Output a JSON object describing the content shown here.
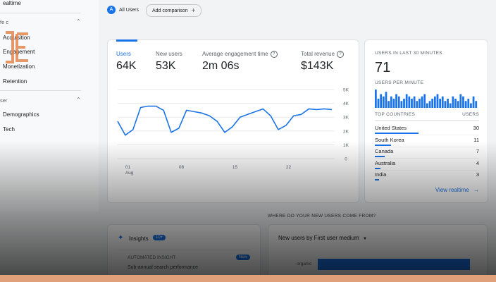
{
  "sidebar": {
    "top_item": "ealtime",
    "section_lifecycle": "fe c",
    "items_lifecycle": [
      "Acquisition",
      "Engagement",
      "Monetization",
      "Retention"
    ],
    "section_user": "ser",
    "items_user": [
      "Demographics",
      "Tech"
    ]
  },
  "header": {
    "all_users_avatar": "A",
    "all_users_label": "All Users",
    "add_comparison_label": "Add comparison"
  },
  "metrics": [
    {
      "label": "Users",
      "value": "64K"
    },
    {
      "label": "New users",
      "value": "53K"
    },
    {
      "label": "Average engagement time",
      "value": "2m 06s"
    },
    {
      "label": "Total revenue",
      "value": "$143K"
    }
  ],
  "chart_data": {
    "type": "line",
    "x": [
      1,
      2,
      3,
      4,
      5,
      6,
      7,
      8,
      9,
      10,
      11,
      12,
      13,
      14,
      15,
      16,
      17,
      18,
      19,
      20,
      21,
      22,
      23,
      24,
      25,
      26,
      27,
      28,
      29
    ],
    "series": [
      {
        "values": [
          2700,
          1700,
          2100,
          3700,
          3800,
          3800,
          3500,
          1900,
          2200,
          3500,
          3400,
          3300,
          3100,
          2700,
          1900,
          2300,
          3000,
          3200,
          3400,
          3600,
          3100,
          2100,
          2400,
          3100,
          3200,
          3600,
          3550,
          3600,
          3550
        ]
      }
    ],
    "x_tick_labels": [
      "01",
      "08",
      "15",
      "22"
    ],
    "x_sublabel": "Aug",
    "y_tick_labels": [
      "5K",
      "4K",
      "3K",
      "2K",
      "1K",
      "0"
    ],
    "ylim": [
      0,
      5000
    ],
    "grid": true
  },
  "realtime": {
    "title": "USERS IN LAST 30 MINUTES",
    "value": "71",
    "per_minute_label": "USERS PER MINUTE",
    "per_minute_values": [
      8,
      4,
      6,
      5,
      7,
      3,
      5,
      4,
      6,
      5,
      3,
      4,
      6,
      5,
      4,
      5,
      3,
      4,
      5,
      6,
      2,
      3,
      4,
      5,
      6,
      4,
      5,
      3,
      4,
      2,
      5,
      4,
      3,
      6,
      5,
      3,
      4,
      2,
      5,
      3
    ],
    "top_countries_label": "TOP COUNTRIES",
    "users_col_label": "USERS",
    "countries": [
      {
        "name": "United States",
        "users": "30",
        "share": 1.0
      },
      {
        "name": "South Korea",
        "users": "11",
        "share": 0.37
      },
      {
        "name": "Canada",
        "users": "7",
        "share": 0.23
      },
      {
        "name": "Australia",
        "users": "4",
        "share": 0.13
      },
      {
        "name": "India",
        "users": "3",
        "share": 0.1
      }
    ],
    "view_realtime_label": "View realtime"
  },
  "acquisition": {
    "heading": "WHERE DO YOUR NEW USERS COME FROM?",
    "dropdown_label": "New users by First user medium",
    "row_label": "organic"
  },
  "insights": {
    "title": "Insights",
    "badge": "10+",
    "row_text": "AUTOMATED INSIGHT",
    "row_badge": "New",
    "row_sub": "Sub-annual search performance"
  },
  "colors": {
    "accent": "#1a73e8",
    "logo": "#e0874f"
  }
}
